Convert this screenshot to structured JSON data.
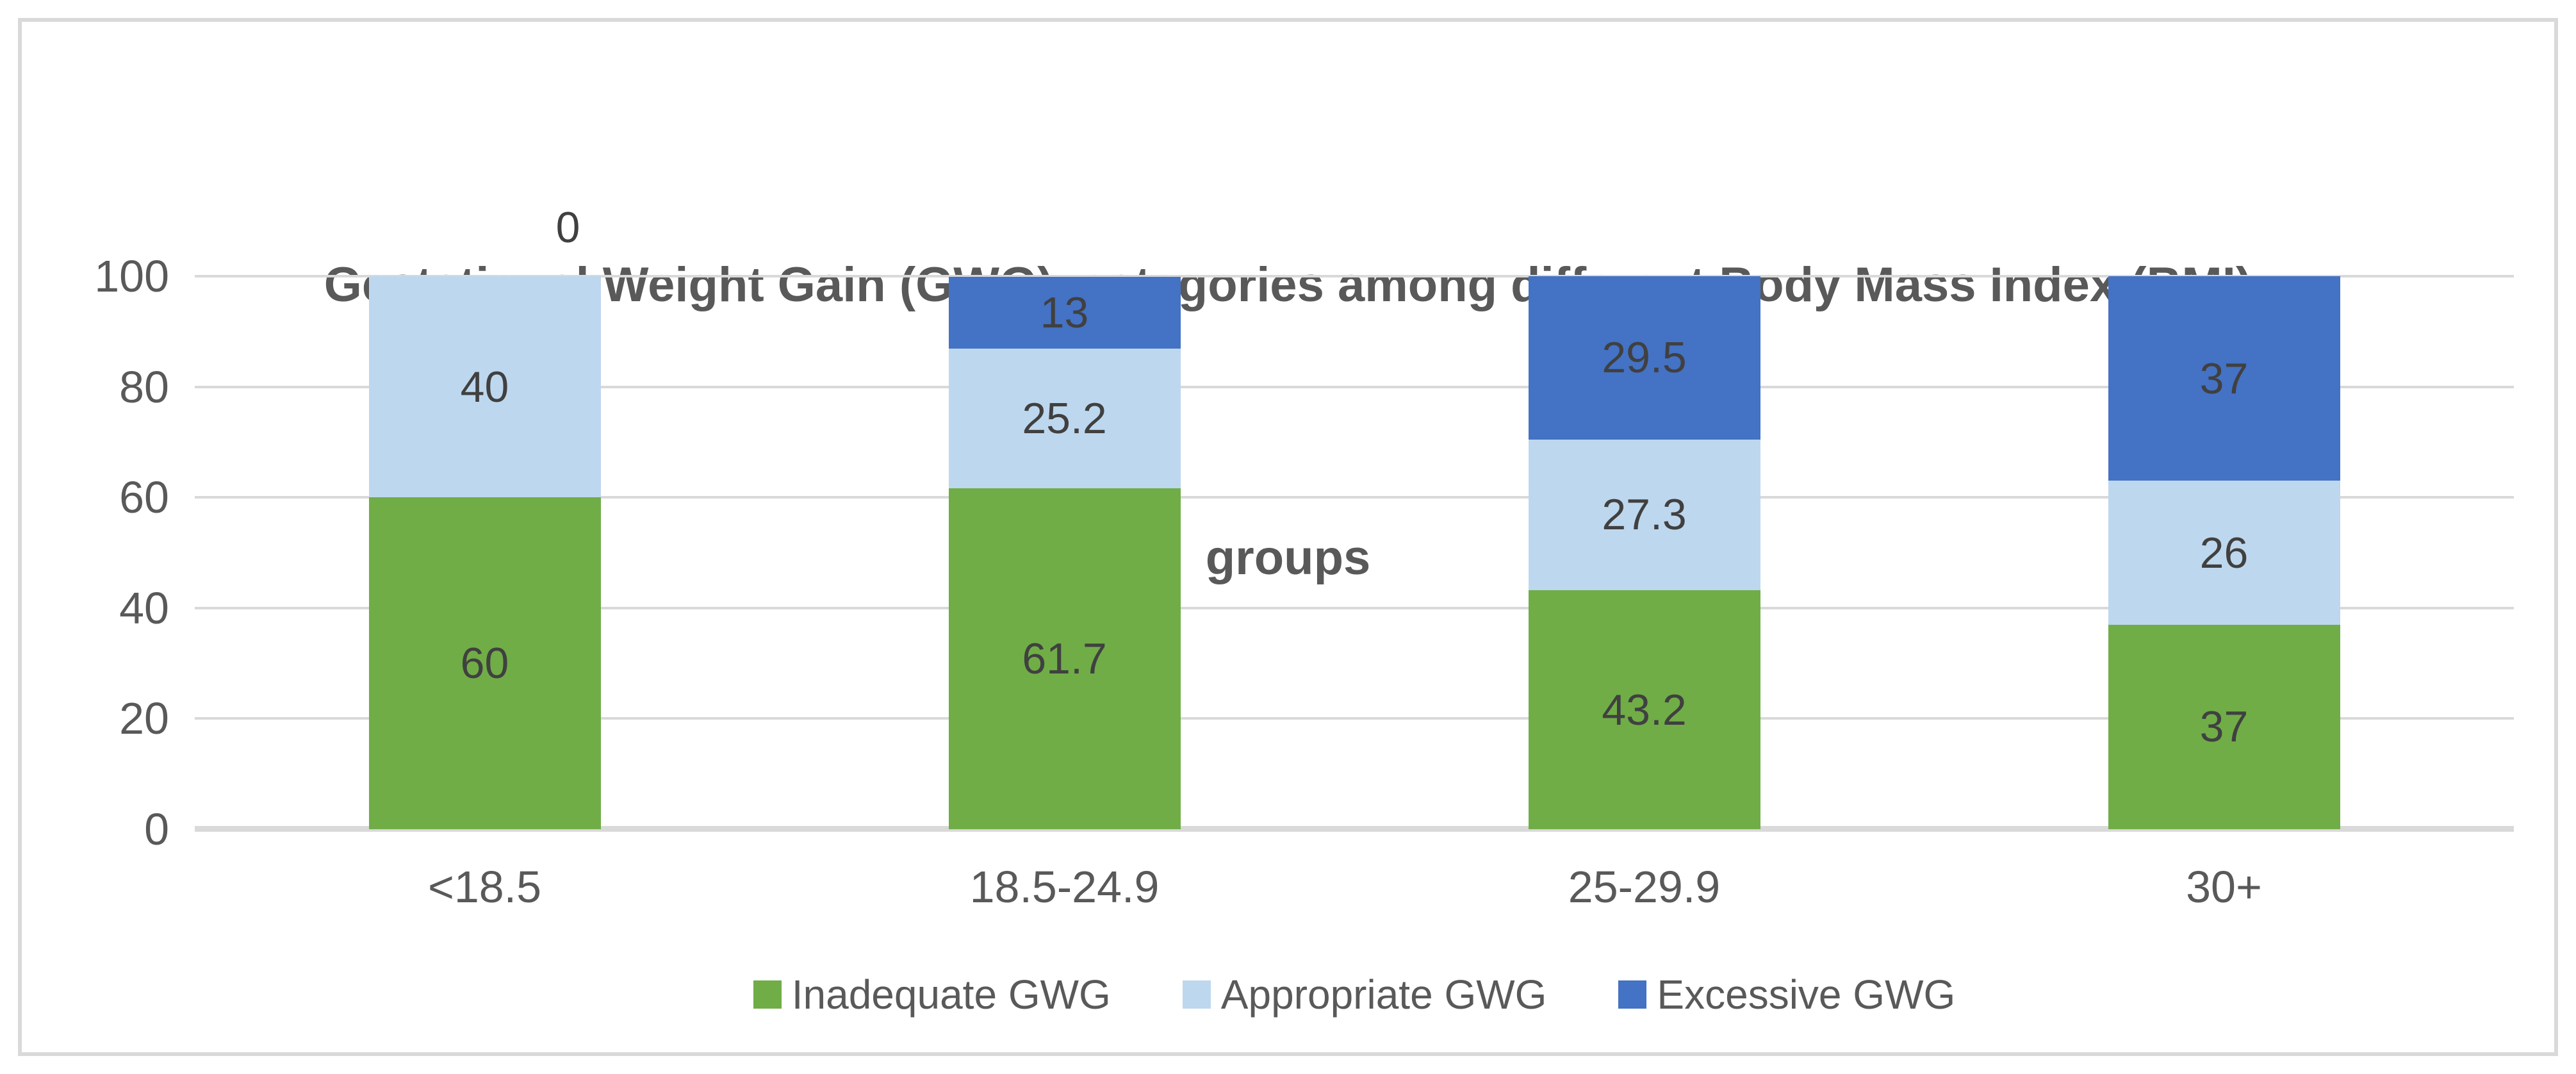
{
  "chart_data": {
    "type": "bar",
    "stacked": true,
    "stack_unit": "percent",
    "title": "Gestational Weight Gain (GWG)  categories among different Body Mass Index (BMI) groups",
    "title_lines": [
      "Gestational Weight Gain (GWG)  categories among different Body Mass Index (BMI)",
      "groups"
    ],
    "categories": [
      "<18.5",
      "18.5-24.9",
      "25-29.9",
      "30+"
    ],
    "series": [
      {
        "name": "Inadequate GWG",
        "color": "#70AD47",
        "values": [
          60,
          61.7,
          43.2,
          37
        ],
        "data_labels": [
          "60",
          "61.7",
          "43.2",
          "37"
        ]
      },
      {
        "name": "Appropriate GWG",
        "color": "#BDD7EE",
        "values": [
          40,
          25.2,
          27.3,
          26
        ],
        "data_labels": [
          "40",
          "25.2",
          "27.3",
          "26"
        ]
      },
      {
        "name": "Excessive GWG",
        "color": "#4472C4",
        "values": [
          0,
          13,
          29.5,
          37
        ],
        "data_labels": [
          "0",
          "13",
          "29.5",
          "37"
        ]
      }
    ],
    "xlabel": "",
    "ylabel": "",
    "ylim": [
      0,
      100
    ],
    "y_ticks": [
      "0",
      "20",
      "40",
      "60",
      "80",
      "100"
    ],
    "grid": true,
    "legend_position": "bottom"
  },
  "style": {
    "background": "#FFFFFF",
    "border_color": "#D9D9D9",
    "gridline_color": "#D9D9D9",
    "text_color": "#595959",
    "data_label_color": "#404040"
  }
}
